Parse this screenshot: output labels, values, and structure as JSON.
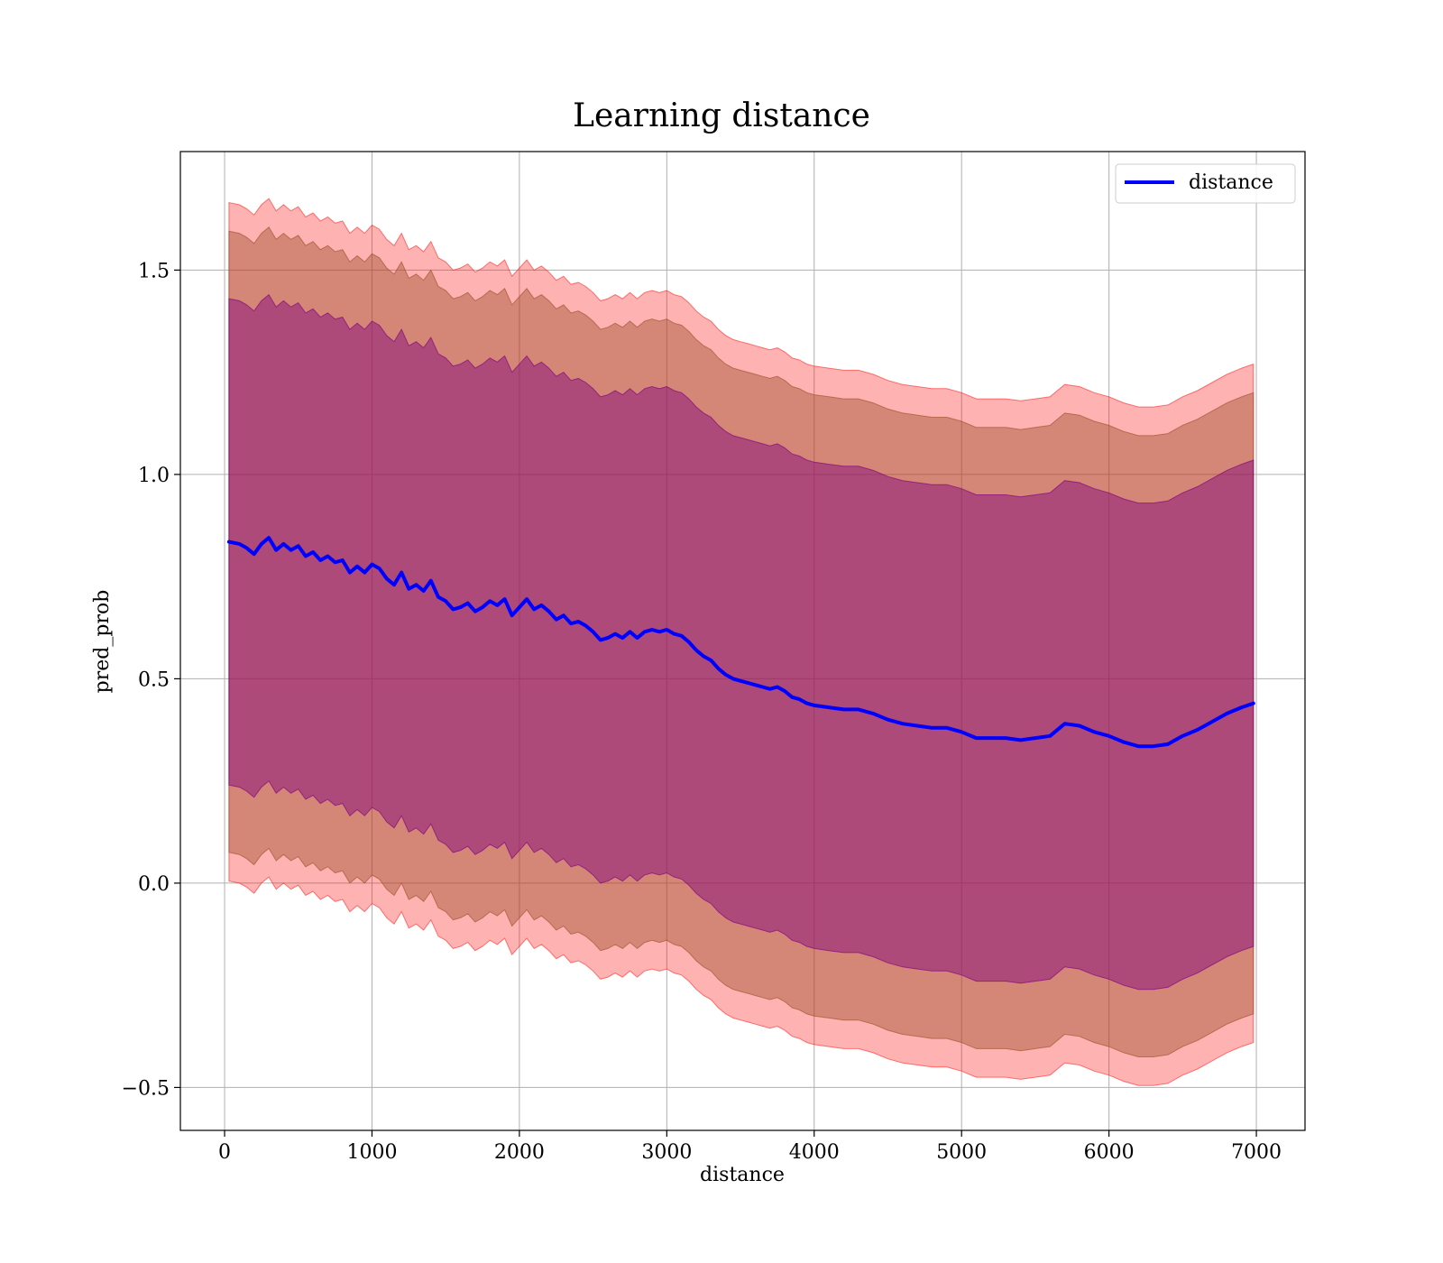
{
  "chart_data": {
    "type": "line",
    "title": "Learning distance",
    "xlabel": "distance",
    "ylabel": "pred_prob",
    "xlim": [
      -300,
      7330
    ],
    "ylim": [
      -0.605,
      1.79
    ],
    "xticks": [
      0,
      1000,
      2000,
      3000,
      4000,
      5000,
      6000,
      7000
    ],
    "xtick_labels": [
      "0",
      "1000",
      "2000",
      "3000",
      "4000",
      "5000",
      "6000",
      "7000"
    ],
    "yticks": [
      -0.5,
      0.0,
      0.5,
      1.0,
      1.5
    ],
    "ytick_labels": [
      "−0.5",
      "0.0",
      "0.5",
      "1.0",
      "1.5"
    ],
    "grid": true,
    "legend_position": "top-right",
    "series": [
      {
        "name": "distance",
        "color": "#0000ff",
        "x": [
          30,
          100,
          150,
          200,
          250,
          300,
          350,
          400,
          450,
          500,
          550,
          600,
          650,
          700,
          750,
          800,
          850,
          900,
          950,
          1000,
          1050,
          1100,
          1150,
          1200,
          1250,
          1300,
          1350,
          1400,
          1450,
          1500,
          1550,
          1600,
          1650,
          1700,
          1750,
          1800,
          1850,
          1900,
          1950,
          2000,
          2050,
          2100,
          2150,
          2200,
          2250,
          2300,
          2350,
          2400,
          2450,
          2500,
          2550,
          2600,
          2650,
          2700,
          2750,
          2800,
          2850,
          2900,
          2950,
          3000,
          3050,
          3100,
          3150,
          3200,
          3250,
          3300,
          3350,
          3400,
          3450,
          3500,
          3550,
          3600,
          3650,
          3700,
          3750,
          3800,
          3850,
          3900,
          3950,
          4000,
          4100,
          4200,
          4300,
          4400,
          4500,
          4600,
          4700,
          4800,
          4900,
          5000,
          5100,
          5200,
          5300,
          5400,
          5500,
          5600,
          5700,
          5800,
          5900,
          6000,
          6100,
          6200,
          6300,
          6400,
          6500,
          6600,
          6700,
          6800,
          6900,
          6980
        ],
        "y": [
          0.835,
          0.83,
          0.82,
          0.805,
          0.83,
          0.845,
          0.815,
          0.83,
          0.815,
          0.825,
          0.8,
          0.81,
          0.79,
          0.8,
          0.785,
          0.79,
          0.76,
          0.775,
          0.76,
          0.78,
          0.77,
          0.745,
          0.73,
          0.76,
          0.72,
          0.73,
          0.715,
          0.74,
          0.7,
          0.69,
          0.67,
          0.675,
          0.685,
          0.665,
          0.675,
          0.69,
          0.68,
          0.695,
          0.655,
          0.675,
          0.695,
          0.67,
          0.68,
          0.665,
          0.645,
          0.655,
          0.635,
          0.64,
          0.63,
          0.615,
          0.595,
          0.6,
          0.61,
          0.6,
          0.615,
          0.6,
          0.615,
          0.62,
          0.615,
          0.62,
          0.61,
          0.605,
          0.59,
          0.57,
          0.555,
          0.545,
          0.525,
          0.51,
          0.5,
          0.495,
          0.49,
          0.485,
          0.48,
          0.475,
          0.48,
          0.47,
          0.455,
          0.45,
          0.44,
          0.435,
          0.43,
          0.425,
          0.425,
          0.415,
          0.4,
          0.39,
          0.385,
          0.38,
          0.38,
          0.37,
          0.355,
          0.355,
          0.355,
          0.35,
          0.355,
          0.36,
          0.39,
          0.385,
          0.37,
          0.36,
          0.345,
          0.335,
          0.335,
          0.34,
          0.36,
          0.375,
          0.395,
          0.415,
          0.43,
          0.44
        ]
      }
    ],
    "bands": [
      {
        "fill": "#ff0000",
        "opacity": 0.3,
        "half_width": 0.83
      },
      {
        "fill": "#a0522d",
        "opacity": 0.45,
        "half_width": 0.76
      },
      {
        "fill": "#800080",
        "opacity": 0.45,
        "half_width": 0.595
      }
    ]
  }
}
